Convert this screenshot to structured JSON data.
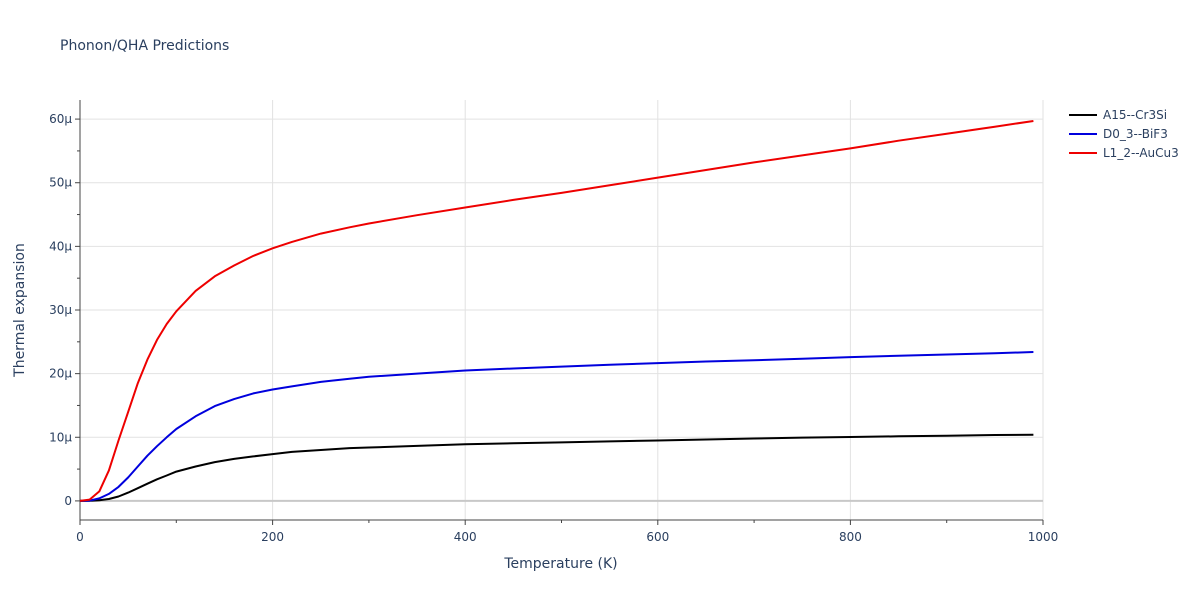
{
  "chart_data": {
    "type": "line",
    "title": "Phonon/QHA Predictions",
    "xlabel": "Temperature (K)",
    "ylabel": "Thermal expansion",
    "xlim": [
      0,
      1000
    ],
    "ylim": [
      -3,
      63
    ],
    "x_ticks": [
      0,
      200,
      400,
      600,
      800,
      1000
    ],
    "y_ticks": [
      0,
      10,
      20,
      30,
      40,
      50,
      60
    ],
    "y_tick_labels": [
      "0",
      "10µ",
      "20µ",
      "30µ",
      "40µ",
      "50µ",
      "60µ"
    ],
    "grid": true,
    "legend_position": "top-right",
    "series": [
      {
        "name": "A15--Cr3Si",
        "color": "#000000",
        "x": [
          0,
          10,
          20,
          30,
          40,
          50,
          60,
          70,
          80,
          90,
          100,
          120,
          140,
          160,
          180,
          200,
          220,
          250,
          280,
          300,
          350,
          400,
          450,
          500,
          550,
          600,
          650,
          700,
          750,
          800,
          850,
          900,
          950,
          990
        ],
        "y": [
          0,
          0.02,
          0.1,
          0.3,
          0.7,
          1.3,
          2.0,
          2.7,
          3.4,
          4.0,
          4.6,
          5.4,
          6.1,
          6.6,
          7.0,
          7.35,
          7.7,
          8.0,
          8.3,
          8.4,
          8.65,
          8.9,
          9.05,
          9.2,
          9.35,
          9.5,
          9.65,
          9.8,
          9.95,
          10.05,
          10.15,
          10.25,
          10.35,
          10.4
        ]
      },
      {
        "name": "D0_3--BiF3",
        "color": "#0000dd",
        "x": [
          0,
          10,
          20,
          30,
          40,
          50,
          60,
          70,
          80,
          90,
          100,
          120,
          140,
          160,
          180,
          200,
          220,
          250,
          280,
          300,
          350,
          400,
          450,
          500,
          550,
          600,
          650,
          700,
          750,
          800,
          850,
          900,
          950,
          990
        ],
        "y": [
          0,
          0.05,
          0.4,
          1.1,
          2.2,
          3.7,
          5.4,
          7.1,
          8.6,
          10.0,
          11.3,
          13.3,
          14.9,
          16.0,
          16.9,
          17.5,
          18.0,
          18.7,
          19.2,
          19.5,
          20.0,
          20.5,
          20.8,
          21.1,
          21.4,
          21.65,
          21.9,
          22.1,
          22.35,
          22.6,
          22.8,
          23.0,
          23.2,
          23.4
        ]
      },
      {
        "name": "L1_2--AuCu3",
        "color": "#ee0000",
        "x": [
          0,
          10,
          20,
          30,
          40,
          50,
          60,
          70,
          80,
          90,
          100,
          120,
          140,
          160,
          180,
          200,
          220,
          250,
          280,
          300,
          350,
          400,
          450,
          500,
          550,
          600,
          650,
          700,
          750,
          800,
          850,
          900,
          950,
          990
        ],
        "y": [
          0,
          0.2,
          1.5,
          4.8,
          9.5,
          14.0,
          18.5,
          22.2,
          25.3,
          27.8,
          29.8,
          33.0,
          35.3,
          37.0,
          38.5,
          39.7,
          40.7,
          42.0,
          43.0,
          43.6,
          44.9,
          46.1,
          47.3,
          48.4,
          49.6,
          50.8,
          52.0,
          53.2,
          54.3,
          55.4,
          56.6,
          57.7,
          58.8,
          59.7
        ]
      }
    ]
  }
}
